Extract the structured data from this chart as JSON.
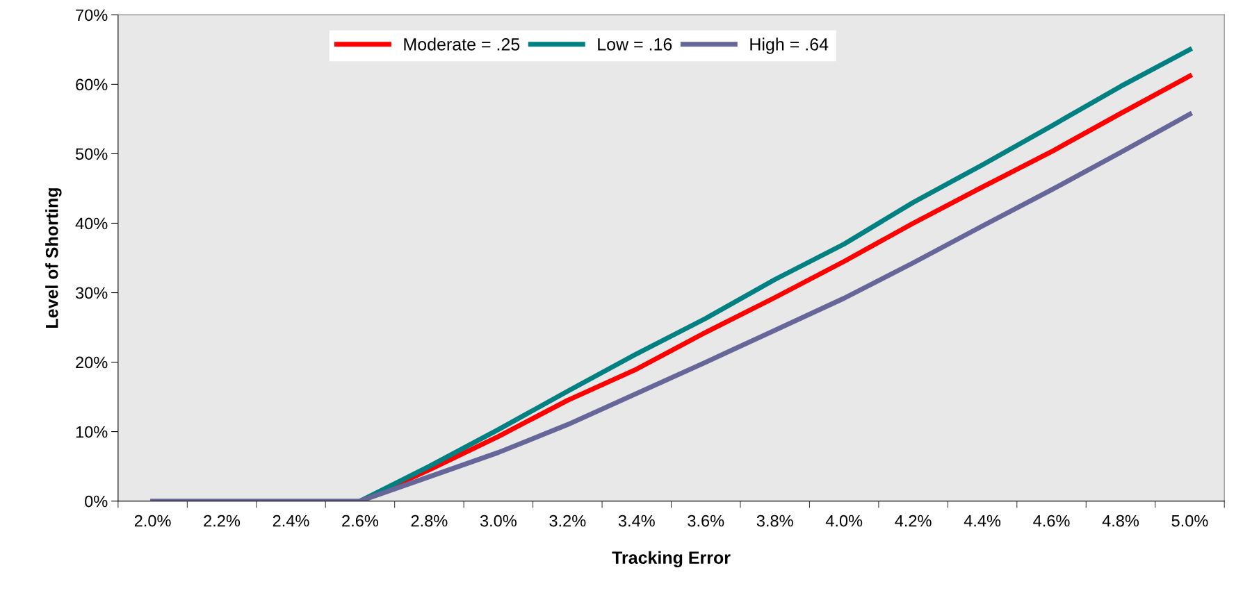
{
  "chart_data": {
    "type": "line",
    "xlabel": "Tracking Error",
    "ylabel": "Level of Shorting",
    "categories": [
      "2.0%",
      "2.2%",
      "2.4%",
      "2.6%",
      "2.8%",
      "3.0%",
      "3.2%",
      "3.4%",
      "3.6%",
      "3.8%",
      "4.0%",
      "4.2%",
      "4.4%",
      "4.6%",
      "4.8%",
      "5.0%"
    ],
    "series": [
      {
        "name": "Moderate = .25",
        "color": "#ff0000",
        "values": [
          null,
          null,
          null,
          0,
          4.5,
          9.3,
          14.5,
          19,
          24.3,
          29.3,
          34.5,
          40,
          45.2,
          50.3,
          55.8,
          61.2
        ]
      },
      {
        "name": "Low = .16",
        "color": "#008080",
        "values": [
          null,
          null,
          null,
          0,
          5,
          10.3,
          15.8,
          21.2,
          26.3,
          31.9,
          37,
          43,
          48.4,
          54,
          59.7,
          65
        ]
      },
      {
        "name": "High = .64",
        "color": "#666699",
        "values": [
          0,
          0,
          0,
          0,
          3.5,
          7,
          11,
          15.5,
          20,
          24.6,
          29.2,
          34.3,
          39.6,
          44.8,
          50.2,
          55.7
        ]
      }
    ],
    "ylim": [
      0,
      70
    ],
    "yticks": [
      {
        "value": 0,
        "label": "0%"
      },
      {
        "value": 10,
        "label": "10%"
      },
      {
        "value": 20,
        "label": "20%"
      },
      {
        "value": 30,
        "label": "30%"
      },
      {
        "value": 40,
        "label": "40%"
      },
      {
        "value": 50,
        "label": "50%"
      },
      {
        "value": 60,
        "label": "60%"
      },
      {
        "value": 70,
        "label": "70%"
      }
    ],
    "grid": false,
    "legend": "top",
    "marker": "none",
    "line_style": "solid"
  }
}
